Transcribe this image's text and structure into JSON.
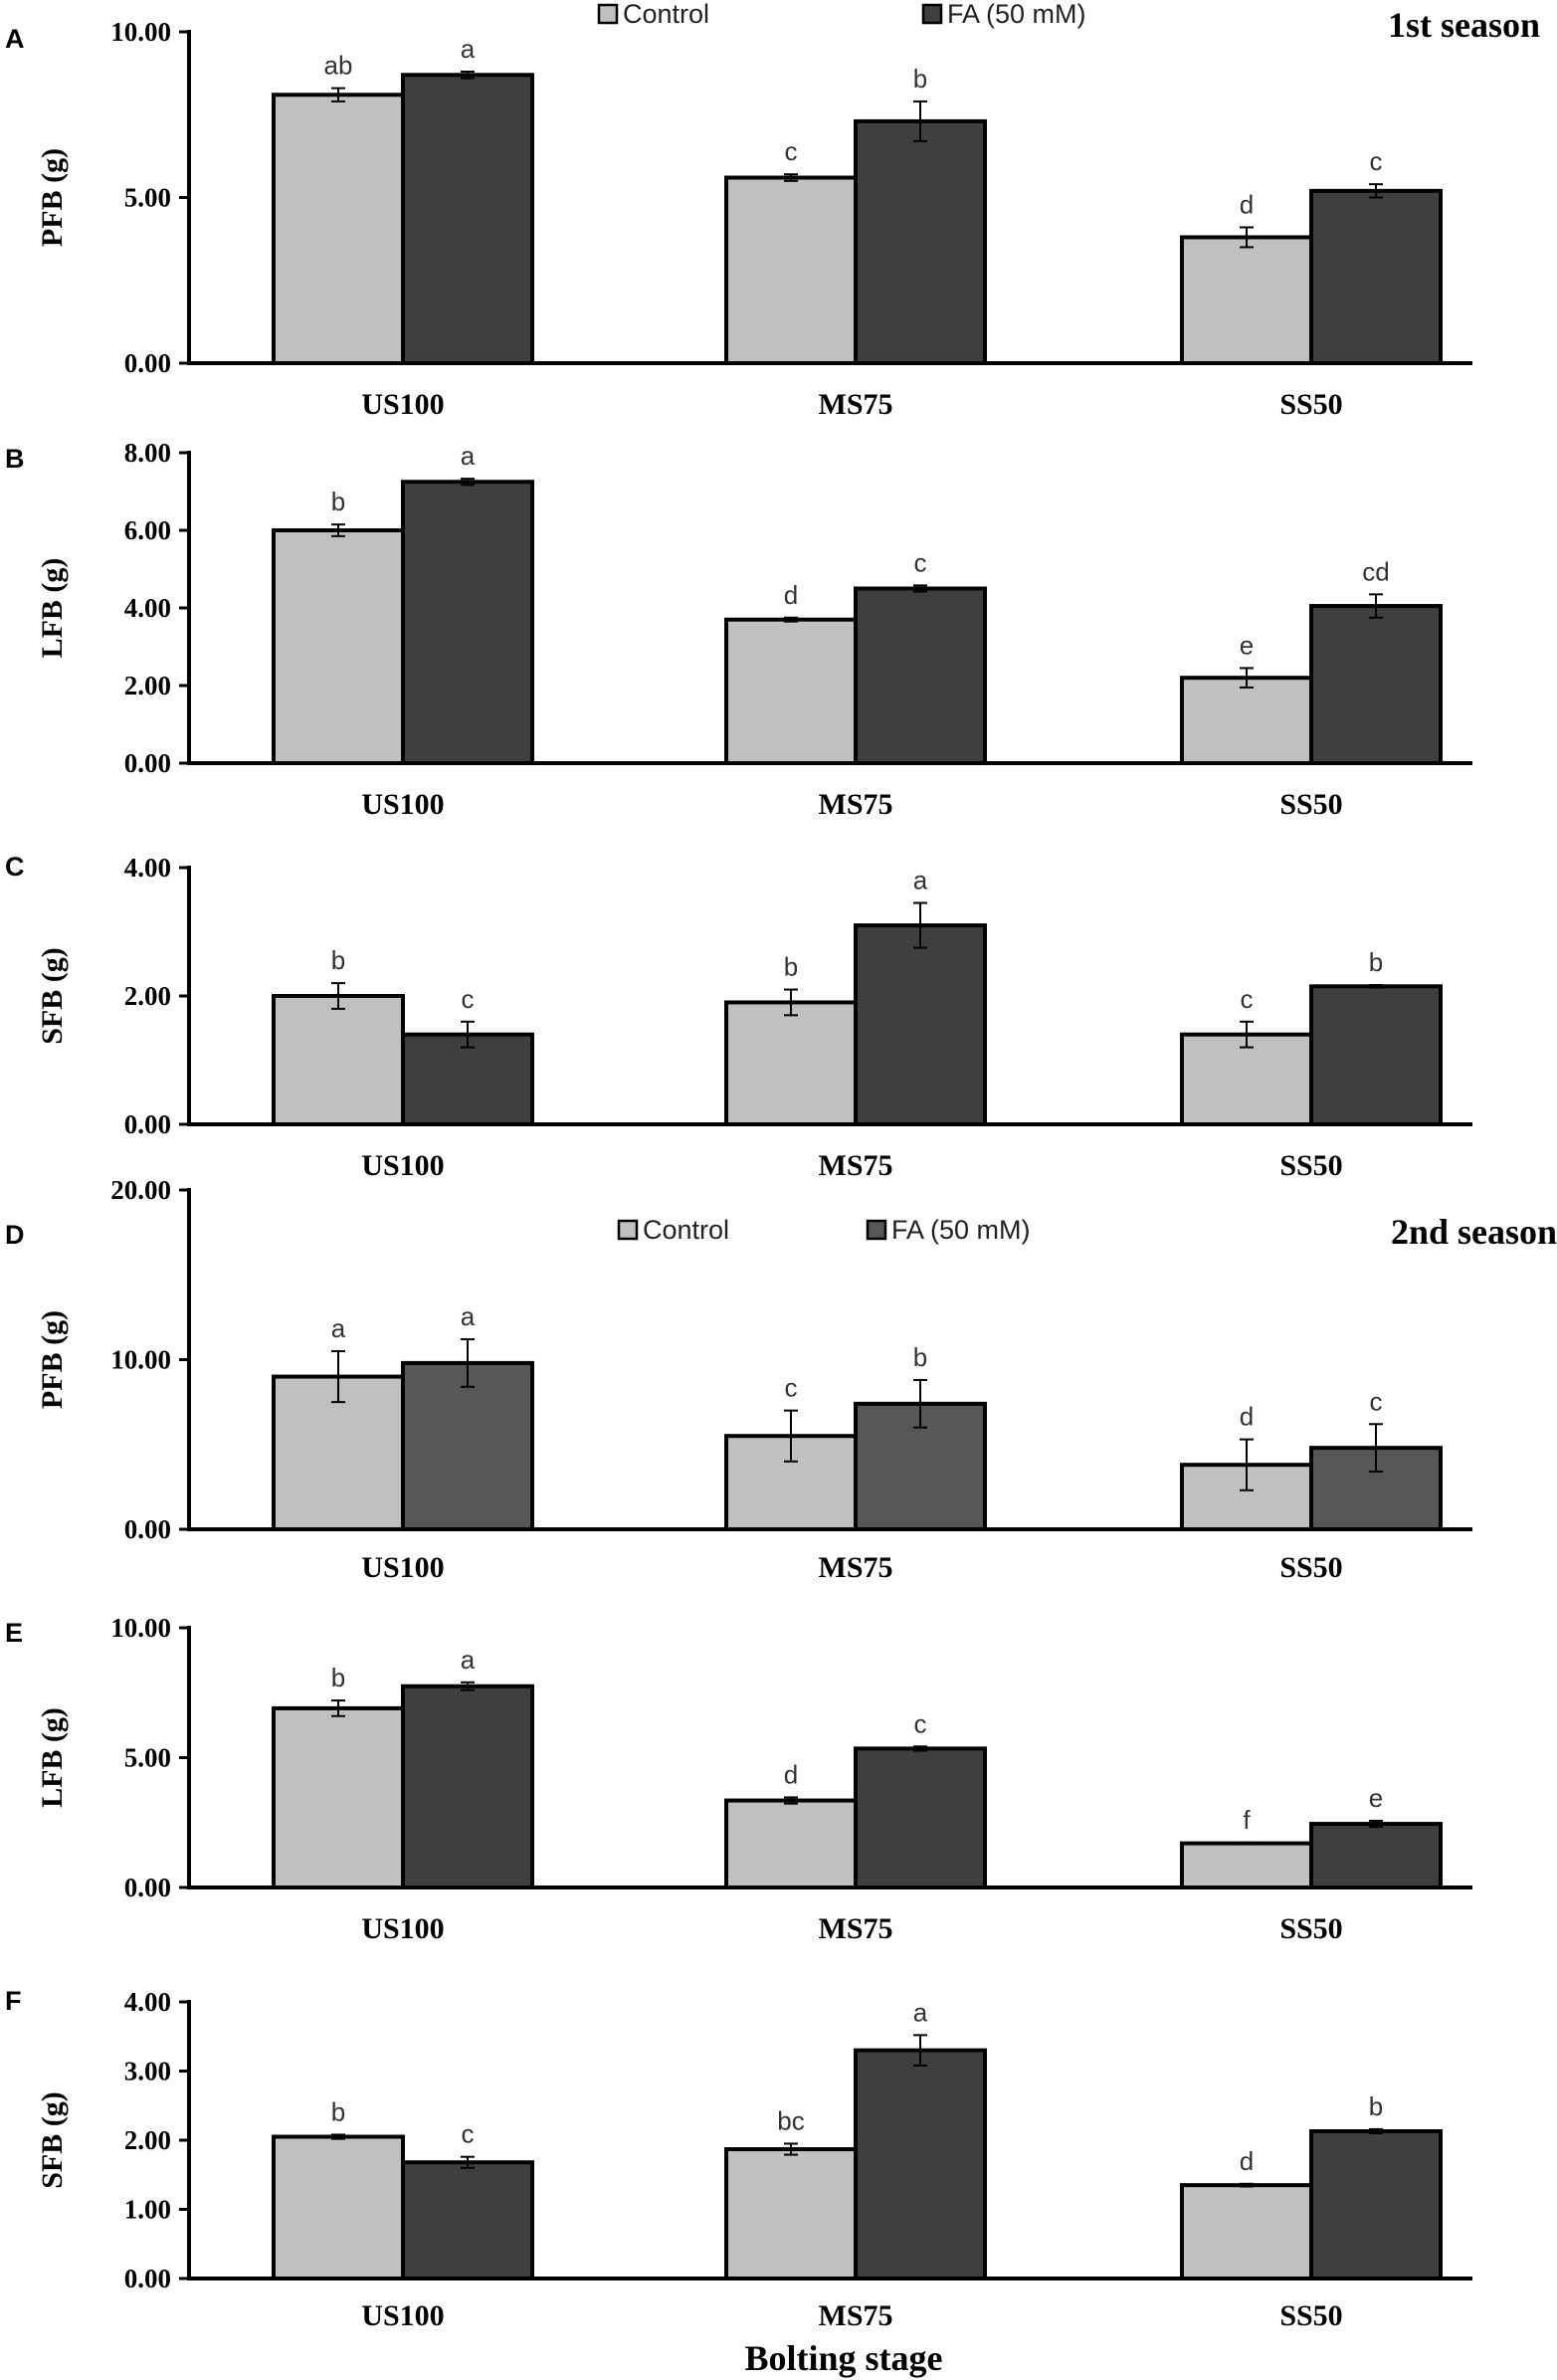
{
  "chart_data": [
    {
      "panel": "A",
      "season_label": "1st season",
      "type": "bar",
      "ylabel": "PFB (g)",
      "ylim": [
        0,
        10
      ],
      "yticks": [
        "0.00",
        "5.00",
        "10.00"
      ],
      "categories": [
        "US100",
        "MS75",
        "SS50"
      ],
      "legend": [
        "Control",
        "FA (50 mM)"
      ],
      "series": [
        {
          "name": "Control",
          "color": "#c0c0c0",
          "values": [
            8.1,
            5.6,
            3.8
          ],
          "errors": [
            0.2,
            0.1,
            0.3
          ],
          "letters": [
            "ab",
            "c",
            "d"
          ]
        },
        {
          "name": "FA (50 mM)",
          "color": "#3f3f3f",
          "values": [
            8.7,
            7.3,
            5.2
          ],
          "errors": [
            0.1,
            0.6,
            0.2
          ],
          "letters": [
            "a",
            "b",
            "c"
          ]
        }
      ]
    },
    {
      "panel": "B",
      "type": "bar",
      "ylabel": "LFB (g)",
      "ylim": [
        0,
        8
      ],
      "yticks": [
        "0.00",
        "2.00",
        "4.00",
        "6.00",
        "8.00"
      ],
      "categories": [
        "US100",
        "MS75",
        "SS50"
      ],
      "series": [
        {
          "name": "Control",
          "color": "#c0c0c0",
          "values": [
            6.0,
            3.7,
            2.2
          ],
          "errors": [
            0.15,
            0.05,
            0.25
          ],
          "letters": [
            "b",
            "d",
            "e"
          ]
        },
        {
          "name": "FA (50 mM)",
          "color": "#3f3f3f",
          "values": [
            7.25,
            4.5,
            4.05
          ],
          "errors": [
            0.08,
            0.08,
            0.3
          ],
          "letters": [
            "a",
            "c",
            "cd"
          ]
        }
      ]
    },
    {
      "panel": "C",
      "type": "bar",
      "ylabel": "SFB (g)",
      "ylim": [
        0,
        4
      ],
      "yticks": [
        "0.00",
        "2.00",
        "4.00"
      ],
      "categories": [
        "US100",
        "MS75",
        "SS50"
      ],
      "series": [
        {
          "name": "Control",
          "color": "#c0c0c0",
          "values": [
            2.0,
            1.9,
            1.4
          ],
          "errors": [
            0.2,
            0.2,
            0.2
          ],
          "letters": [
            "b",
            "b",
            "c"
          ]
        },
        {
          "name": "FA (50 mM)",
          "color": "#3f3f3f",
          "values": [
            1.4,
            3.1,
            2.15
          ],
          "errors": [
            0.2,
            0.35,
            0.02
          ],
          "letters": [
            "c",
            "a",
            "b"
          ]
        }
      ]
    },
    {
      "panel": "D",
      "season_label": "2nd season",
      "type": "bar",
      "ylabel": "PFB (g)",
      "ylim": [
        0,
        20
      ],
      "yticks": [
        "0.00",
        "10.00",
        "20.00"
      ],
      "categories": [
        "US100",
        "MS75",
        "SS50"
      ],
      "legend": [
        "Control",
        "FA (50 mM)"
      ],
      "series": [
        {
          "name": "Control",
          "color": "#c0c0c0",
          "values": [
            9.0,
            5.5,
            3.8
          ],
          "errors": [
            1.5,
            1.5,
            1.5
          ],
          "letters": [
            "a",
            "c",
            "d"
          ]
        },
        {
          "name": "FA (50 mM)",
          "color": "#575757",
          "values": [
            9.8,
            7.4,
            4.8
          ],
          "errors": [
            1.4,
            1.4,
            1.4
          ],
          "letters": [
            "a",
            "b",
            "c"
          ]
        }
      ]
    },
    {
      "panel": "E",
      "type": "bar",
      "ylabel": "LFB (g)",
      "ylim": [
        0,
        10
      ],
      "yticks": [
        "0.00",
        "5.00",
        "10.00"
      ],
      "categories": [
        "US100",
        "MS75",
        "SS50"
      ],
      "series": [
        {
          "name": "Control",
          "color": "#c0c0c0",
          "values": [
            6.9,
            3.35,
            1.7
          ],
          "errors": [
            0.3,
            0.12,
            0.03
          ],
          "letters": [
            "b",
            "d",
            "f"
          ]
        },
        {
          "name": "FA (50 mM)",
          "color": "#3f3f3f",
          "values": [
            7.75,
            5.35,
            2.45
          ],
          "errors": [
            0.15,
            0.08,
            0.12
          ],
          "letters": [
            "a",
            "c",
            "e"
          ]
        }
      ]
    },
    {
      "panel": "F",
      "type": "bar",
      "ylabel": "SFB (g)",
      "ylim": [
        0,
        4
      ],
      "yticks": [
        "0.00",
        "1.00",
        "2.00",
        "3.00",
        "4.00"
      ],
      "categories": [
        "US100",
        "MS75",
        "SS50"
      ],
      "xlabel": "Bolting stage",
      "series": [
        {
          "name": "Control",
          "color": "#c0c0c0",
          "values": [
            2.05,
            1.87,
            1.35
          ],
          "errors": [
            0.03,
            0.08,
            0.02
          ],
          "letters": [
            "b",
            "bc",
            "d"
          ]
        },
        {
          "name": "FA (50 mM)",
          "color": "#3f3f3f",
          "values": [
            1.68,
            3.3,
            2.13
          ],
          "errors": [
            0.08,
            0.22,
            0.03
          ],
          "letters": [
            "c",
            "a",
            "b"
          ]
        }
      ]
    }
  ]
}
